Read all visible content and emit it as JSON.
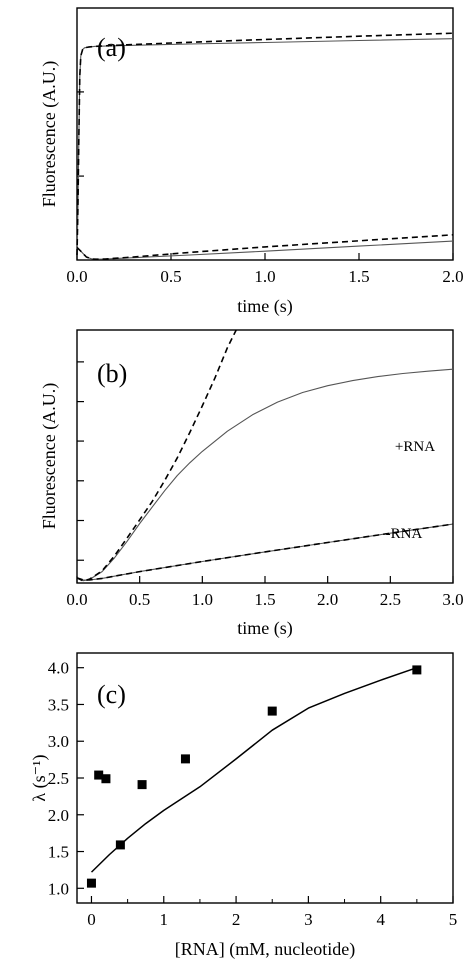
{
  "colors": {
    "axis": "#000000",
    "fit_line": "#000000",
    "data_line": "#555555",
    "marker": "#000000"
  },
  "chart_data": [
    {
      "type": "line",
      "panel_label": "(a)",
      "xlabel": "time (s)",
      "ylabel": "Fluorescence (A.U.)",
      "xlim": [
        0,
        2
      ],
      "ylim": [
        0,
        1
      ],
      "y_tick_labels_shown": false,
      "grid": false,
      "x_ticks": [
        0,
        0.5,
        1,
        1.5,
        2
      ],
      "x_tick_labels": [
        "0.0",
        "0.5",
        "1.0",
        "1.5",
        "2.0"
      ],
      "y_ticks": [
        0.333,
        0.667
      ],
      "series": [
        {
          "style": "solid-gray",
          "x": [
            0,
            0.005,
            0.01,
            0.015,
            0.02,
            0.03,
            0.04,
            0.06,
            0.1,
            0.3,
            0.6,
            1.0,
            1.5,
            2.0
          ],
          "y": [
            0.02,
            0.2,
            0.5,
            0.73,
            0.81,
            0.835,
            0.842,
            0.845,
            0.848,
            0.852,
            0.857,
            0.863,
            0.871,
            0.878
          ]
        },
        {
          "style": "dashed-black",
          "x": [
            0,
            0.005,
            0.01,
            0.015,
            0.02,
            0.03,
            0.04,
            0.06,
            0.1,
            0.3,
            0.6,
            1.0,
            1.5,
            2.0
          ],
          "y": [
            0.02,
            0.2,
            0.5,
            0.73,
            0.81,
            0.835,
            0.842,
            0.845,
            0.848,
            0.855,
            0.864,
            0.875,
            0.888,
            0.9
          ]
        },
        {
          "style": "solid-gray",
          "x": [
            0,
            0.02,
            0.05,
            0.08,
            0.1,
            0.15,
            0.3,
            0.6,
            1.0,
            1.5,
            2.0
          ],
          "y": [
            0.05,
            0.035,
            0.012,
            0.004,
            0.003,
            0.004,
            0.009,
            0.02,
            0.035,
            0.055,
            0.075
          ]
        },
        {
          "style": "dashed-black",
          "x": [
            0,
            0.02,
            0.05,
            0.08,
            0.1,
            0.15,
            0.3,
            0.6,
            1.0,
            1.5,
            2.0
          ],
          "y": [
            0.05,
            0.035,
            0.012,
            0.004,
            0.003,
            0.004,
            0.012,
            0.03,
            0.052,
            0.076,
            0.1
          ]
        }
      ]
    },
    {
      "type": "line",
      "panel_label": "(b)",
      "xlabel": "time (s)",
      "ylabel": "Fluorescence (A.U.)",
      "xlim": [
        0,
        3
      ],
      "ylim": [
        0,
        1
      ],
      "y_tick_labels_shown": false,
      "grid": false,
      "x_ticks": [
        0,
        0.5,
        1,
        1.5,
        2,
        2.5,
        3
      ],
      "x_tick_labels": [
        "0.0",
        "0.5",
        "1.0",
        "1.5",
        "2.0",
        "2.5",
        "3.0"
      ],
      "y_ticks": [
        0.09,
        0.247,
        0.404,
        0.561,
        0.717,
        0.874
      ],
      "annotations": [
        {
          "text": "+RNA",
          "x": 2.78,
          "y": 0.86
        },
        {
          "text": "-RNA",
          "x": 2.6,
          "y": 0.198
        }
      ],
      "series": [
        {
          "name": "+RNA",
          "style": "solid-gray",
          "x": [
            0,
            0.05,
            0.1,
            0.2,
            0.3,
            0.4,
            0.5,
            0.6,
            0.7,
            0.8,
            0.9,
            1.0,
            1.2,
            1.4,
            1.6,
            1.8,
            2.0,
            2.2,
            2.4,
            2.6,
            2.8,
            3.0
          ],
          "y": [
            0.02,
            0.009,
            0.014,
            0.045,
            0.1,
            0.165,
            0.235,
            0.3,
            0.365,
            0.425,
            0.475,
            0.52,
            0.6,
            0.665,
            0.715,
            0.753,
            0.78,
            0.8,
            0.816,
            0.828,
            0.837,
            0.845
          ]
        },
        {
          "name": "+RNA",
          "style": "dashed-black",
          "x": [
            0,
            0.05,
            0.1,
            0.2,
            0.3,
            0.4,
            0.5,
            0.6,
            0.7,
            0.8,
            0.9,
            1.0,
            1.1,
            1.2,
            1.27
          ],
          "y": [
            0.02,
            0.008,
            0.015,
            0.048,
            0.108,
            0.178,
            0.25,
            0.322,
            0.405,
            0.495,
            0.595,
            0.7,
            0.81,
            0.93,
            1.0
          ]
        },
        {
          "name": "-RNA",
          "style": "solid-gray",
          "x": [
            0,
            0.05,
            0.1,
            0.2,
            0.5,
            1.0,
            1.5,
            2.0,
            2.5,
            3.0
          ],
          "y": [
            0.02,
            0.012,
            0.012,
            0.018,
            0.045,
            0.085,
            0.123,
            0.16,
            0.197,
            0.233
          ]
        },
        {
          "name": "-RNA",
          "style": "dashed-black",
          "x": [
            0,
            0.05,
            0.1,
            0.2,
            0.5,
            1.0,
            1.5,
            2.0,
            2.5,
            3.0
          ],
          "y": [
            0.02,
            0.012,
            0.012,
            0.018,
            0.045,
            0.085,
            0.123,
            0.16,
            0.197,
            0.233
          ]
        }
      ]
    },
    {
      "type": "scatter",
      "panel_label": "(c)",
      "xlabel": "[RNA] (mM, nucleotide)",
      "ylabel": "λ (s⁻¹)",
      "xlim": [
        -0.2,
        5
      ],
      "ylim": [
        0.8,
        4.2
      ],
      "grid": false,
      "x_ticks": [
        0,
        1,
        2,
        3,
        4,
        5
      ],
      "x_tick_labels": [
        "0",
        "1",
        "2",
        "3",
        "4",
        "5"
      ],
      "y_ticks": [
        1.0,
        1.5,
        2.0,
        2.5,
        3.0,
        3.5,
        4.0
      ],
      "y_tick_labels": [
        "1.0",
        "1.5",
        "2.0",
        "2.5",
        "3.0",
        "3.5",
        "4.0"
      ],
      "points": {
        "x": [
          0.0,
          0.1,
          0.2,
          0.4,
          0.7,
          1.3,
          2.5,
          4.5
        ],
        "y": [
          1.07,
          2.54,
          2.49,
          1.59,
          2.41,
          2.76,
          3.41,
          3.97
        ]
      },
      "fit": {
        "style": "solid-black",
        "x": [
          0.0,
          0.25,
          0.5,
          0.75,
          1.0,
          1.5,
          2.0,
          2.5,
          3.0,
          3.5,
          4.0,
          4.5
        ],
        "y": [
          1.22,
          1.46,
          1.68,
          1.88,
          2.06,
          2.38,
          2.76,
          3.15,
          3.45,
          3.65,
          3.83,
          4.0
        ]
      }
    }
  ]
}
